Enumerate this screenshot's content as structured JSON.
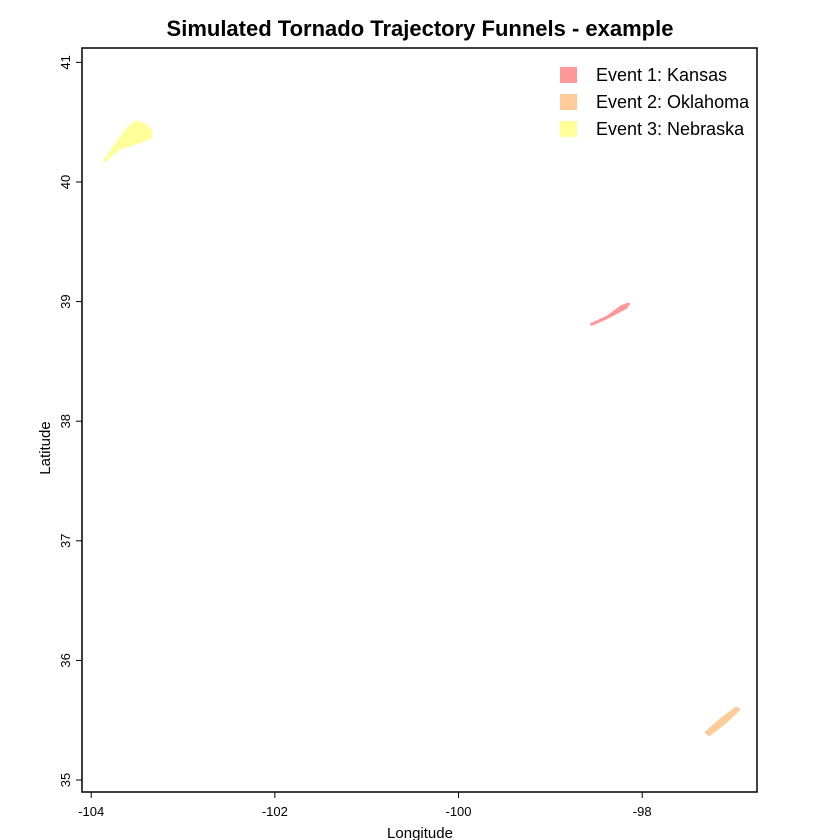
{
  "chart_data": {
    "type": "area",
    "title": "Simulated Tornado Trajectory Funnels - example",
    "xlabel": "Longitude",
    "ylabel": "Latitude",
    "xlim": [
      -104.1,
      -96.75
    ],
    "ylim": [
      34.9,
      41.12
    ],
    "x_ticks": [
      -104,
      -102,
      -100,
      -98
    ],
    "y_ticks": [
      35,
      36,
      37,
      38,
      39,
      40,
      41
    ],
    "grid": false,
    "legend_position": "top-right",
    "series": [
      {
        "name": "Event 1: Kansas",
        "color": "#ff9999",
        "polygon": [
          [
            -98.55,
            38.81
          ],
          [
            -98.35,
            38.88
          ],
          [
            -98.18,
            38.95
          ],
          [
            -98.15,
            38.98
          ],
          [
            -98.22,
            38.96
          ],
          [
            -98.4,
            38.86
          ]
        ]
      },
      {
        "name": "Event 2: Oklahoma",
        "color": "#ffcc99",
        "polygon": [
          [
            -97.3,
            35.4
          ],
          [
            -97.15,
            35.5
          ],
          [
            -96.98,
            35.6
          ],
          [
            -96.95,
            35.59
          ],
          [
            -97.1,
            35.48
          ],
          [
            -97.27,
            35.38
          ]
        ]
      },
      {
        "name": "Event 3: Nebraska",
        "color": "#ffff99",
        "polygon": [
          [
            -103.85,
            40.18
          ],
          [
            -103.7,
            40.28
          ],
          [
            -103.5,
            40.33
          ],
          [
            -103.36,
            40.37
          ],
          [
            -103.35,
            40.42
          ],
          [
            -103.42,
            40.48
          ],
          [
            -103.52,
            40.5
          ],
          [
            -103.62,
            40.43
          ],
          [
            -103.74,
            40.3
          ],
          [
            -103.83,
            40.2
          ]
        ]
      }
    ]
  }
}
